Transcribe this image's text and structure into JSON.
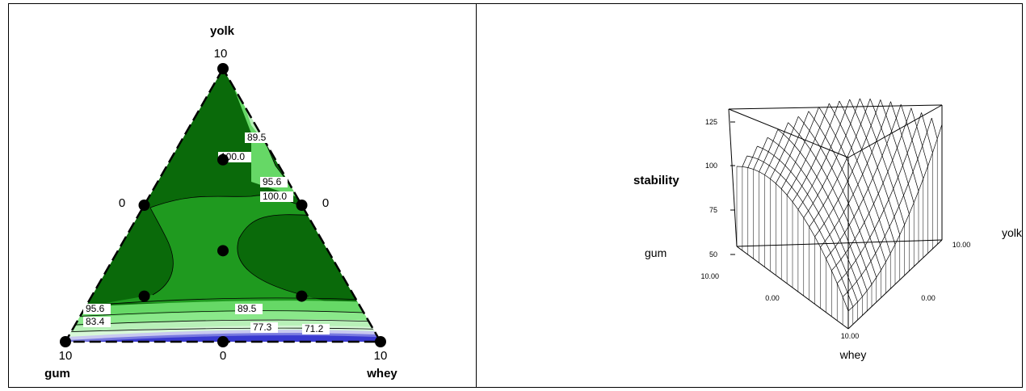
{
  "chart_data": [
    {
      "type": "contour",
      "subtype": "ternary mixture contour plot",
      "corner_labels": {
        "top": "yolk",
        "bottom_left": "gum",
        "bottom_right": "whey"
      },
      "corner_values": {
        "top": "10",
        "bottom_left": "10",
        "bottom_right": "10"
      },
      "side_values": {
        "left": "0",
        "right": "0",
        "bottom": "0"
      },
      "contour_labels": [
        "89.5",
        "100.0",
        "95.6",
        "100.0",
        "95.6",
        "83.4",
        "89.5",
        "77.3",
        "71.2"
      ],
      "design_points": [
        {
          "yolk": 10,
          "gum": 0,
          "whey": 0
        },
        {
          "yolk": 6.67,
          "gum": 1.67,
          "whey": 1.67
        },
        {
          "yolk": 5,
          "gum": 5,
          "whey": 0
        },
        {
          "yolk": 5,
          "gum": 0,
          "whey": 5
        },
        {
          "yolk": 3.33,
          "gum": 3.33,
          "whey": 3.33
        },
        {
          "yolk": 1.67,
          "gum": 6.67,
          "whey": 1.67
        },
        {
          "yolk": 1.67,
          "gum": 1.67,
          "whey": 6.67
        },
        {
          "yolk": 0,
          "gum": 10,
          "whey": 0
        },
        {
          "yolk": 0,
          "gum": 5,
          "whey": 5
        },
        {
          "yolk": 0,
          "gum": 0,
          "whey": 10
        }
      ],
      "colors": {
        "high": "#0a6a0a",
        "mid": "#1f9a1f",
        "light": "#66d866",
        "pale": "#b8f0b8",
        "low": "#3a3ad0"
      }
    },
    {
      "type": "surface",
      "subtype": "3D wireframe response surface",
      "zlabel": "stability",
      "z_ticks": [
        "125",
        "100",
        "75",
        "50"
      ],
      "axes": {
        "left": "gum",
        "bottom": "whey",
        "right": "yolk"
      },
      "tick_labels": {
        "gum_max": "10.00",
        "gum_min": "0.00",
        "whey_min": "0.00",
        "whey_max": "10.00",
        "yolk_max": "10.00"
      }
    }
  ]
}
